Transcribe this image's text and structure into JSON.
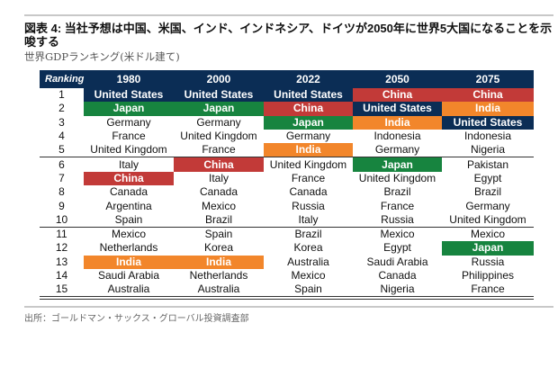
{
  "title": "図表 4: 当社予想は中国、米国、インド、インドネシア、ドイツが2050年に世界5大国になることを示唆する",
  "subtitle": "世界GDPランキング(米ドル建て)",
  "colors": {
    "header": "#0b2d55",
    "United States": "#0b2d55",
    "Japan": "#17843f",
    "China": "#c23a38",
    "India": "#f2862b"
  },
  "table": {
    "headers": [
      "Ranking",
      "1980",
      "2000",
      "2022",
      "2050",
      "2075"
    ],
    "rows": [
      [
        "1",
        "United States",
        "United States",
        "United States",
        "China",
        "China"
      ],
      [
        "2",
        "Japan",
        "Japan",
        "China",
        "United States",
        "India"
      ],
      [
        "3",
        "Germany",
        "Germany",
        "Japan",
        "India",
        "United States"
      ],
      [
        "4",
        "France",
        "United Kingdom",
        "Germany",
        "Indonesia",
        "Indonesia"
      ],
      [
        "5",
        "United Kingdom",
        "France",
        "India",
        "Germany",
        "Nigeria"
      ],
      [
        "6",
        "Italy",
        "China",
        "United Kingdom",
        "Japan",
        "Pakistan"
      ],
      [
        "7",
        "China",
        "Italy",
        "France",
        "United Kingdom",
        "Egypt"
      ],
      [
        "8",
        "Canada",
        "Canada",
        "Canada",
        "Brazil",
        "Brazil"
      ],
      [
        "9",
        "Argentina",
        "Mexico",
        "Russia",
        "France",
        "Germany"
      ],
      [
        "10",
        "Spain",
        "Brazil",
        "Italy",
        "Russia",
        "United Kingdom"
      ],
      [
        "11",
        "Mexico",
        "Spain",
        "Brazil",
        "Mexico",
        "Mexico"
      ],
      [
        "12",
        "Netherlands",
        "Korea",
        "Korea",
        "Egypt",
        "Japan"
      ],
      [
        "13",
        "India",
        "India",
        "Australia",
        "Saudi Arabia",
        "Russia"
      ],
      [
        "14",
        "Saudi Arabia",
        "Netherlands",
        "Mexico",
        "Canada",
        "Philippines"
      ],
      [
        "15",
        "Australia",
        "Australia",
        "Spain",
        "Nigeria",
        "France"
      ]
    ]
  },
  "source": "出所：ゴールドマン・サックス・グローバル投資調査部"
}
